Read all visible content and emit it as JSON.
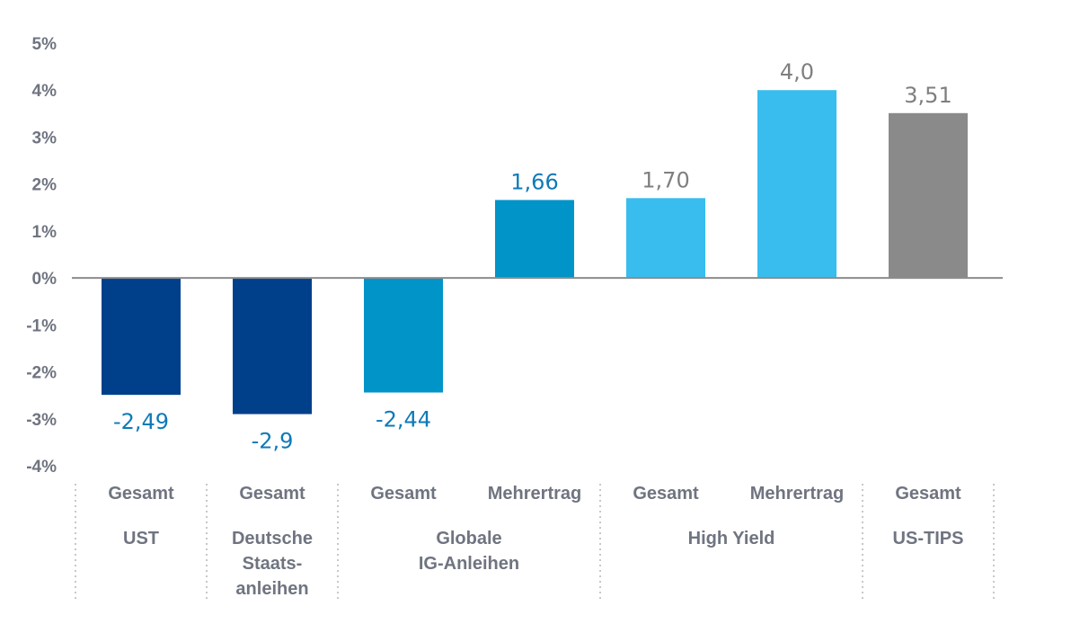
{
  "chart_data": {
    "type": "bar",
    "ylim": [
      -4,
      5
    ],
    "y_ticks": [
      "5%",
      "4%",
      "3%",
      "2%",
      "1%",
      "0%",
      "-1%",
      "-2%",
      "-3%",
      "-4%"
    ],
    "y_tick_values": [
      5,
      4,
      3,
      2,
      1,
      0,
      -1,
      -2,
      -3,
      -4
    ],
    "categories": [
      "Gesamt",
      "Gesamt",
      "Gesamt",
      "Mehrertrag",
      "Gesamt",
      "Mehrertrag",
      "Gesamt"
    ],
    "values": [
      -2.49,
      -2.9,
      -2.44,
      1.66,
      1.7,
      4.0,
      3.51
    ],
    "value_labels": [
      "-2,49",
      "-2,9",
      "-2,44",
      "1,66",
      "1,70",
      "4,0",
      "3,51"
    ],
    "bar_colors": [
      "#00408b",
      "#00408b",
      "#0094c8",
      "#0094c8",
      "#38bdee",
      "#38bdee",
      "#8a8a8a"
    ],
    "label_colors": [
      "#0e7ab8",
      "#0e7ab8",
      "#0e7ab8",
      "#0e7ab8",
      "#7f7f7f",
      "#7f7f7f",
      "#7f7f7f"
    ],
    "groups": [
      {
        "lines": [
          "UST"
        ],
        "span": [
          0,
          0
        ]
      },
      {
        "lines": [
          "Deutsche",
          "Staats-",
          "anleihen"
        ],
        "span": [
          1,
          1
        ]
      },
      {
        "lines": [
          "Globale",
          "IG-Anleihen"
        ],
        "span": [
          2,
          3
        ]
      },
      {
        "lines": [
          "High Yield"
        ],
        "span": [
          4,
          5
        ]
      },
      {
        "lines": [
          "US-TIPS"
        ],
        "span": [
          6,
          6
        ]
      }
    ],
    "grid": false,
    "legend": "none"
  }
}
